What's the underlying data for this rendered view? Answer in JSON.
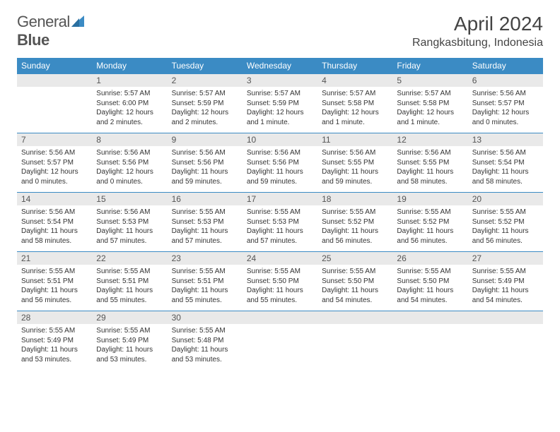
{
  "brand": {
    "part1": "General",
    "part2": "Blue",
    "accent_color": "#3b8bc4"
  },
  "title": "April 2024",
  "location": "Rangkasbitung, Indonesia",
  "colors": {
    "header_bg": "#3b8bc4",
    "header_text": "#ffffff",
    "daynum_bg": "#e9e9e9",
    "text": "#333333",
    "page_bg": "#ffffff"
  },
  "typography": {
    "title_fontsize": 28,
    "location_fontsize": 16,
    "dayhead_fontsize": 12,
    "body_fontsize": 10
  },
  "day_headers": [
    "Sunday",
    "Monday",
    "Tuesday",
    "Wednesday",
    "Thursday",
    "Friday",
    "Saturday"
  ],
  "weeks": [
    [
      null,
      {
        "n": "1",
        "sr": "Sunrise: 5:57 AM",
        "ss": "Sunset: 6:00 PM",
        "d1": "Daylight: 12 hours",
        "d2": "and 2 minutes."
      },
      {
        "n": "2",
        "sr": "Sunrise: 5:57 AM",
        "ss": "Sunset: 5:59 PM",
        "d1": "Daylight: 12 hours",
        "d2": "and 2 minutes."
      },
      {
        "n": "3",
        "sr": "Sunrise: 5:57 AM",
        "ss": "Sunset: 5:59 PM",
        "d1": "Daylight: 12 hours",
        "d2": "and 1 minute."
      },
      {
        "n": "4",
        "sr": "Sunrise: 5:57 AM",
        "ss": "Sunset: 5:58 PM",
        "d1": "Daylight: 12 hours",
        "d2": "and 1 minute."
      },
      {
        "n": "5",
        "sr": "Sunrise: 5:57 AM",
        "ss": "Sunset: 5:58 PM",
        "d1": "Daylight: 12 hours",
        "d2": "and 1 minute."
      },
      {
        "n": "6",
        "sr": "Sunrise: 5:56 AM",
        "ss": "Sunset: 5:57 PM",
        "d1": "Daylight: 12 hours",
        "d2": "and 0 minutes."
      }
    ],
    [
      {
        "n": "7",
        "sr": "Sunrise: 5:56 AM",
        "ss": "Sunset: 5:57 PM",
        "d1": "Daylight: 12 hours",
        "d2": "and 0 minutes."
      },
      {
        "n": "8",
        "sr": "Sunrise: 5:56 AM",
        "ss": "Sunset: 5:56 PM",
        "d1": "Daylight: 12 hours",
        "d2": "and 0 minutes."
      },
      {
        "n": "9",
        "sr": "Sunrise: 5:56 AM",
        "ss": "Sunset: 5:56 PM",
        "d1": "Daylight: 11 hours",
        "d2": "and 59 minutes."
      },
      {
        "n": "10",
        "sr": "Sunrise: 5:56 AM",
        "ss": "Sunset: 5:56 PM",
        "d1": "Daylight: 11 hours",
        "d2": "and 59 minutes."
      },
      {
        "n": "11",
        "sr": "Sunrise: 5:56 AM",
        "ss": "Sunset: 5:55 PM",
        "d1": "Daylight: 11 hours",
        "d2": "and 59 minutes."
      },
      {
        "n": "12",
        "sr": "Sunrise: 5:56 AM",
        "ss": "Sunset: 5:55 PM",
        "d1": "Daylight: 11 hours",
        "d2": "and 58 minutes."
      },
      {
        "n": "13",
        "sr": "Sunrise: 5:56 AM",
        "ss": "Sunset: 5:54 PM",
        "d1": "Daylight: 11 hours",
        "d2": "and 58 minutes."
      }
    ],
    [
      {
        "n": "14",
        "sr": "Sunrise: 5:56 AM",
        "ss": "Sunset: 5:54 PM",
        "d1": "Daylight: 11 hours",
        "d2": "and 58 minutes."
      },
      {
        "n": "15",
        "sr": "Sunrise: 5:56 AM",
        "ss": "Sunset: 5:53 PM",
        "d1": "Daylight: 11 hours",
        "d2": "and 57 minutes."
      },
      {
        "n": "16",
        "sr": "Sunrise: 5:55 AM",
        "ss": "Sunset: 5:53 PM",
        "d1": "Daylight: 11 hours",
        "d2": "and 57 minutes."
      },
      {
        "n": "17",
        "sr": "Sunrise: 5:55 AM",
        "ss": "Sunset: 5:53 PM",
        "d1": "Daylight: 11 hours",
        "d2": "and 57 minutes."
      },
      {
        "n": "18",
        "sr": "Sunrise: 5:55 AM",
        "ss": "Sunset: 5:52 PM",
        "d1": "Daylight: 11 hours",
        "d2": "and 56 minutes."
      },
      {
        "n": "19",
        "sr": "Sunrise: 5:55 AM",
        "ss": "Sunset: 5:52 PM",
        "d1": "Daylight: 11 hours",
        "d2": "and 56 minutes."
      },
      {
        "n": "20",
        "sr": "Sunrise: 5:55 AM",
        "ss": "Sunset: 5:52 PM",
        "d1": "Daylight: 11 hours",
        "d2": "and 56 minutes."
      }
    ],
    [
      {
        "n": "21",
        "sr": "Sunrise: 5:55 AM",
        "ss": "Sunset: 5:51 PM",
        "d1": "Daylight: 11 hours",
        "d2": "and 56 minutes."
      },
      {
        "n": "22",
        "sr": "Sunrise: 5:55 AM",
        "ss": "Sunset: 5:51 PM",
        "d1": "Daylight: 11 hours",
        "d2": "and 55 minutes."
      },
      {
        "n": "23",
        "sr": "Sunrise: 5:55 AM",
        "ss": "Sunset: 5:51 PM",
        "d1": "Daylight: 11 hours",
        "d2": "and 55 minutes."
      },
      {
        "n": "24",
        "sr": "Sunrise: 5:55 AM",
        "ss": "Sunset: 5:50 PM",
        "d1": "Daylight: 11 hours",
        "d2": "and 55 minutes."
      },
      {
        "n": "25",
        "sr": "Sunrise: 5:55 AM",
        "ss": "Sunset: 5:50 PM",
        "d1": "Daylight: 11 hours",
        "d2": "and 54 minutes."
      },
      {
        "n": "26",
        "sr": "Sunrise: 5:55 AM",
        "ss": "Sunset: 5:50 PM",
        "d1": "Daylight: 11 hours",
        "d2": "and 54 minutes."
      },
      {
        "n": "27",
        "sr": "Sunrise: 5:55 AM",
        "ss": "Sunset: 5:49 PM",
        "d1": "Daylight: 11 hours",
        "d2": "and 54 minutes."
      }
    ],
    [
      {
        "n": "28",
        "sr": "Sunrise: 5:55 AM",
        "ss": "Sunset: 5:49 PM",
        "d1": "Daylight: 11 hours",
        "d2": "and 53 minutes."
      },
      {
        "n": "29",
        "sr": "Sunrise: 5:55 AM",
        "ss": "Sunset: 5:49 PM",
        "d1": "Daylight: 11 hours",
        "d2": "and 53 minutes."
      },
      {
        "n": "30",
        "sr": "Sunrise: 5:55 AM",
        "ss": "Sunset: 5:48 PM",
        "d1": "Daylight: 11 hours",
        "d2": "and 53 minutes."
      },
      null,
      null,
      null,
      null
    ]
  ]
}
